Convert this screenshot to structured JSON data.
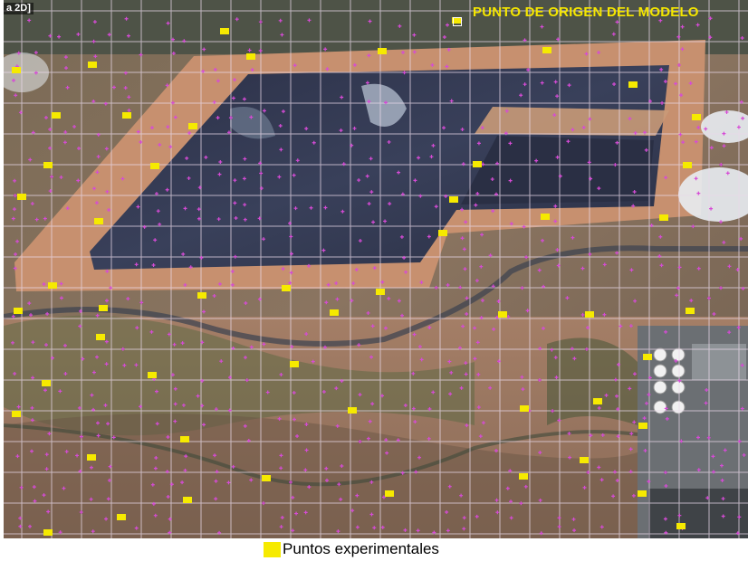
{
  "map": {
    "view_tag": "a 2D]",
    "origin_label": "PUNTO DE ORIGEN DEL MODELO",
    "point_color": "#f6ea00",
    "grid_color": "#e8d8e8",
    "mesh_node_color": "#d64bd6",
    "imagery": "satellite-view"
  },
  "legend": {
    "label": "Puntos experimentales",
    "swatch_color": "#f6ea00"
  }
}
